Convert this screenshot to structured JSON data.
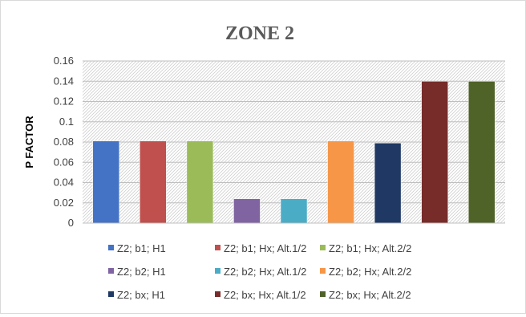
{
  "chart_data": {
    "type": "bar",
    "title": "ZONE 2",
    "xlabel": "",
    "ylabel": "P FACTOR",
    "ylim": [
      0,
      0.16
    ],
    "yticks": [
      "0.16",
      "0.14",
      "0.12",
      "0.1",
      "0.08",
      "0.06",
      "0.04",
      "0.02",
      "0"
    ],
    "grid": true,
    "legend_position": "bottom",
    "series": [
      {
        "name": "Z2; b1; H1",
        "value": 0.081,
        "color": "#4472c4"
      },
      {
        "name": "Z2; b1; Hx; Alt.1/2",
        "value": 0.081,
        "color": "#c0504d"
      },
      {
        "name": "Z2; b1; Hx; Alt.2/2",
        "value": 0.081,
        "color": "#9bbb59"
      },
      {
        "name": "Z2; b2; H1",
        "value": 0.024,
        "color": "#8064a2"
      },
      {
        "name": "Z2; b2; Hx; Alt.1/2",
        "value": 0.024,
        "color": "#4bacc6"
      },
      {
        "name": "Z2; b2; Hx; Alt.2/2",
        "value": 0.081,
        "color": "#f79646"
      },
      {
        "name": "Z2; bx; H1",
        "value": 0.079,
        "color": "#1f3864"
      },
      {
        "name": "Z2; bx; Hx; Alt.1/2",
        "value": 0.14,
        "color": "#772c2a"
      },
      {
        "name": "Z2; bx; Hx; Alt.2/2",
        "value": 0.14,
        "color": "#4f6228"
      }
    ]
  }
}
